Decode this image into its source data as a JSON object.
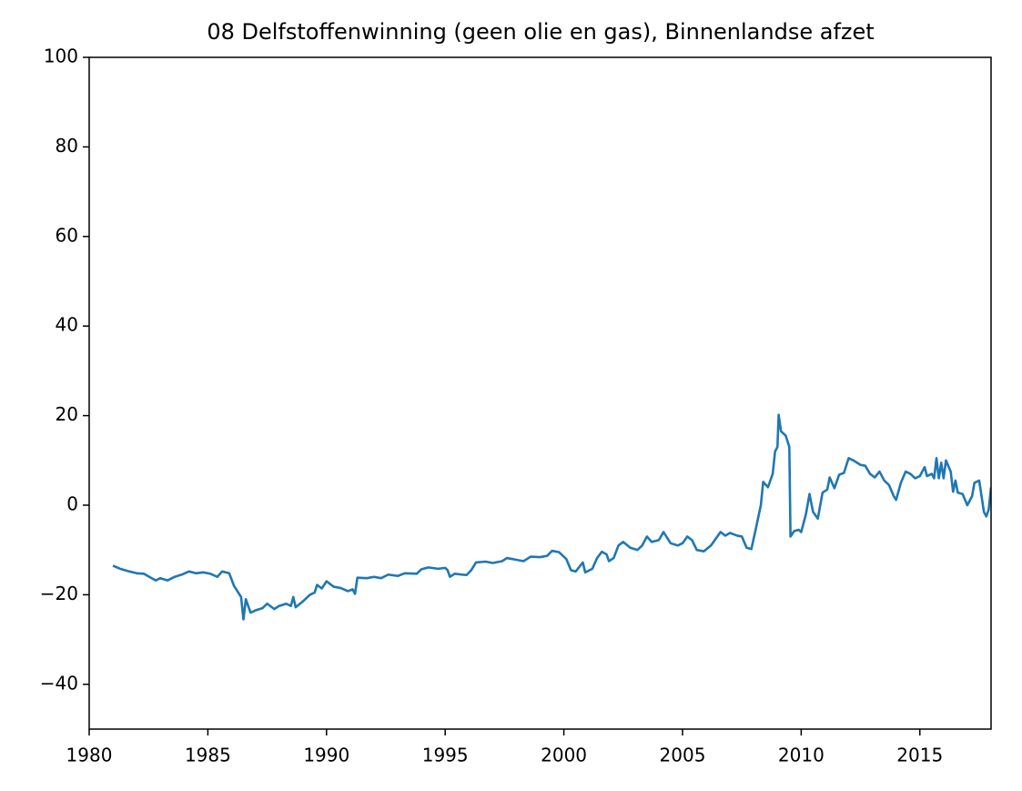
{
  "chart_data": {
    "type": "line",
    "title": "08 Delfstoffenwinning (geen olie en gas), Binnenlandse afzet",
    "color": "#1f77b4",
    "x": [
      1981.0,
      1981.3,
      1981.7,
      1982.0,
      1982.3,
      1982.6,
      1982.8,
      1983.0,
      1983.3,
      1983.6,
      1983.9,
      1984.2,
      1984.5,
      1984.8,
      1985.1,
      1985.4,
      1985.6,
      1985.9,
      1986.1,
      1986.4,
      1986.5,
      1986.6,
      1986.8,
      1987.0,
      1987.3,
      1987.5,
      1987.8,
      1988.0,
      1988.3,
      1988.5,
      1988.6,
      1988.7,
      1989.0,
      1989.3,
      1989.5,
      1989.6,
      1989.8,
      1990.0,
      1990.3,
      1990.6,
      1990.9,
      1991.1,
      1991.2,
      1991.3,
      1991.7,
      1992.0,
      1992.3,
      1992.6,
      1993.0,
      1993.3,
      1993.8,
      1994.0,
      1994.3,
      1994.7,
      1995.0,
      1995.1,
      1995.2,
      1995.4,
      1995.7,
      1995.9,
      1996.1,
      1996.3,
      1996.7,
      1997.0,
      1997.4,
      1997.6,
      1998.0,
      1998.3,
      1998.6,
      1999.0,
      1999.3,
      1999.5,
      1999.8,
      2000.1,
      2000.3,
      2000.5,
      2000.8,
      2000.9,
      2001.2,
      2001.4,
      2001.6,
      2001.8,
      2001.9,
      2002.1,
      2002.3,
      2002.5,
      2002.8,
      2003.1,
      2003.3,
      2003.5,
      2003.7,
      2004.0,
      2004.2,
      2004.5,
      2004.8,
      2005.0,
      2005.2,
      2005.4,
      2005.6,
      2005.9,
      2006.2,
      2006.4,
      2006.6,
      2006.8,
      2007.0,
      2007.3,
      2007.5,
      2007.7,
      2007.9,
      2008.1,
      2008.3,
      2008.4,
      2008.6,
      2008.8,
      2008.9,
      2009.0,
      2009.05,
      2009.15,
      2009.35,
      2009.5,
      2009.55,
      2009.7,
      2009.9,
      2010.0,
      2010.2,
      2010.35,
      2010.5,
      2010.7,
      2010.9,
      2011.1,
      2011.2,
      2011.4,
      2011.6,
      2011.8,
      2012.0,
      2012.2,
      2012.5,
      2012.7,
      2012.9,
      2013.1,
      2013.3,
      2013.5,
      2013.7,
      2013.9,
      2014.0,
      2014.2,
      2014.4,
      2014.6,
      2014.8,
      2015.0,
      2015.2,
      2015.3,
      2015.5,
      2015.6,
      2015.7,
      2015.8,
      2015.9,
      2016.0,
      2016.1,
      2016.3,
      2016.4,
      2016.5,
      2016.6,
      2016.8,
      2017.0,
      2017.2,
      2017.3,
      2017.5,
      2017.7,
      2017.8,
      2017.9,
      2018.0
    ],
    "values": [
      -13.5,
      -14.2,
      -14.8,
      -15.2,
      -15.3,
      -16.2,
      -16.8,
      -16.3,
      -16.8,
      -16.0,
      -15.5,
      -14.8,
      -15.2,
      -15.0,
      -15.3,
      -16.0,
      -14.8,
      -15.2,
      -18,
      -20.5,
      -25.5,
      -21,
      -24,
      -23.5,
      -23.0,
      -22.0,
      -23.2,
      -22.5,
      -22.0,
      -22.5,
      -20.5,
      -22.8,
      -21.5,
      -20.0,
      -19.5,
      -17.8,
      -18.6,
      -17.0,
      -18.2,
      -18.5,
      -19.2,
      -18.8,
      -19.8,
      -16.2,
      -16.3,
      -16.0,
      -16.3,
      -15.5,
      -15.8,
      -15.2,
      -15.3,
      -14.3,
      -13.9,
      -14.2,
      -14.0,
      -14.5,
      -16.0,
      -15.3,
      -15.5,
      -15.6,
      -14.5,
      -12.8,
      -12.6,
      -12.9,
      -12.5,
      -11.8,
      -12.2,
      -12.5,
      -11.5,
      -11.6,
      -11.3,
      -10.2,
      -10.5,
      -12.0,
      -14.5,
      -14.8,
      -12.8,
      -15.0,
      -14.2,
      -11.8,
      -10.4,
      -11.0,
      -12.5,
      -11.8,
      -9.0,
      -8.2,
      -9.5,
      -10.0,
      -9.0,
      -7.0,
      -8.2,
      -7.8,
      -6.0,
      -8.5,
      -9.0,
      -8.5,
      -7.0,
      -7.8,
      -10.0,
      -10.3,
      -9.0,
      -7.5,
      -6.0,
      -6.8,
      -6.2,
      -6.8,
      -7.0,
      -9.5,
      -9.8,
      -5.0,
      0.0,
      5.2,
      4.0,
      7.0,
      12.0,
      13.0,
      20.2,
      16.5,
      15.5,
      13.0,
      -7.0,
      -5.8,
      -5.5,
      -6.0,
      -2.0,
      2.5,
      -1.5,
      -3.0,
      2.8,
      3.5,
      6.2,
      3.8,
      6.8,
      7.2,
      10.5,
      10.0,
      9.0,
      8.8,
      7.0,
      6.2,
      7.5,
      5.5,
      4.5,
      2.0,
      1.2,
      5.0,
      7.5,
      7.0,
      6.0,
      6.5,
      8.5,
      6.5,
      7.0,
      6.0,
      10.5,
      6.0,
      9.5,
      6.0,
      10.0,
      7.5,
      3.0,
      5.5,
      2.8,
      2.5,
      0.0,
      2.0,
      5.0,
      5.5,
      -1.5,
      -2.5,
      -1.0,
      4.0
    ],
    "xlim": [
      1980,
      2018
    ],
    "xticks": [
      1980,
      1985,
      1990,
      1995,
      2000,
      2005,
      2010,
      2015
    ],
    "ylim": [
      -50,
      100
    ],
    "yticks": [
      {
        "value": -40,
        "label": "−40"
      },
      {
        "value": -20,
        "label": "−20"
      },
      0,
      20,
      40,
      60,
      80,
      100
    ],
    "grid": false
  }
}
